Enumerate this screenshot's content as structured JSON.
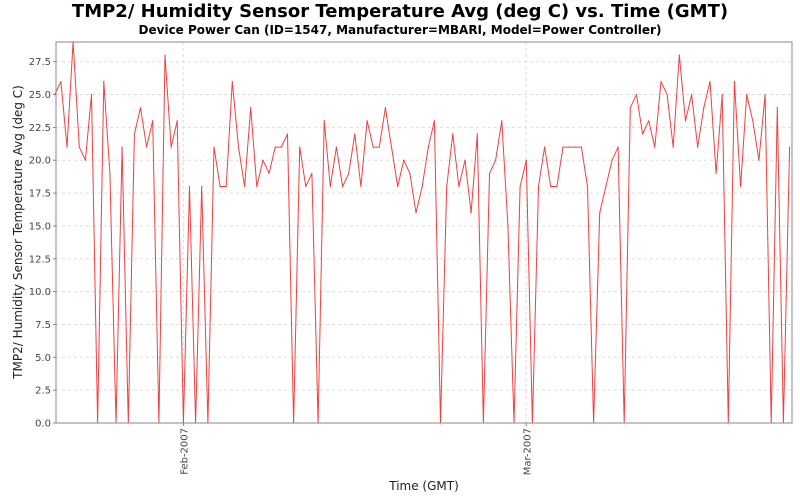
{
  "chart_data": {
    "type": "line",
    "title": "TMP2/ Humidity Sensor Temperature Avg (deg C) vs. Time (GMT)",
    "subtitle": "Device Power Can (ID=1547, Manufacturer=MBARI, Model=Power Controller)",
    "xlabel": "Time (GMT)",
    "ylabel": "TMP2/ Humidity Sensor Temperature Avg (deg C)",
    "x_unit": "days since 2007-01-01 00:00 GMT",
    "xlim": [
      20.6,
      80.7
    ],
    "ylim": [
      0,
      29
    ],
    "grid": true,
    "legend": "none",
    "color": "#f04040",
    "y_ticks": [
      "0.0",
      "2.5",
      "5.0",
      "7.5",
      "10.0",
      "12.5",
      "15.0",
      "17.5",
      "20.0",
      "22.5",
      "25.0",
      "27.5"
    ],
    "x_ticks": [
      {
        "label": "Feb-2007",
        "x": 31
      },
      {
        "label": "Mar-2007",
        "x": 59
      }
    ],
    "series": [
      {
        "name": "TMP2/ Humidity Sensor Temperature Avg",
        "x_start": 20.5,
        "x_step": 0.5,
        "values": [
          25,
          26,
          21,
          29,
          21,
          20,
          25,
          0,
          26,
          19,
          0,
          21,
          0,
          22,
          24,
          21,
          23,
          0,
          28,
          21,
          23,
          0,
          18,
          0,
          18,
          0,
          21,
          18,
          18,
          26,
          21,
          18,
          24,
          18,
          20,
          19,
          21,
          21,
          22,
          0,
          21,
          18,
          19,
          0,
          23,
          18,
          21,
          18,
          19,
          22,
          18,
          23,
          21,
          21,
          24,
          21,
          18,
          20,
          19,
          16,
          18,
          21,
          23,
          0,
          18,
          22,
          18,
          20,
          16,
          22,
          0,
          19,
          20,
          23,
          15,
          0,
          18,
          20,
          0,
          18,
          21,
          18,
          18,
          21,
          21,
          21,
          21,
          18,
          0,
          16,
          18,
          20,
          21,
          0,
          24,
          25,
          22,
          23,
          21,
          26,
          25,
          21,
          28,
          23,
          25,
          21,
          24,
          26,
          19,
          25,
          0,
          26,
          18,
          25,
          23,
          20,
          25,
          0,
          24,
          0,
          21
        ]
      }
    ]
  }
}
